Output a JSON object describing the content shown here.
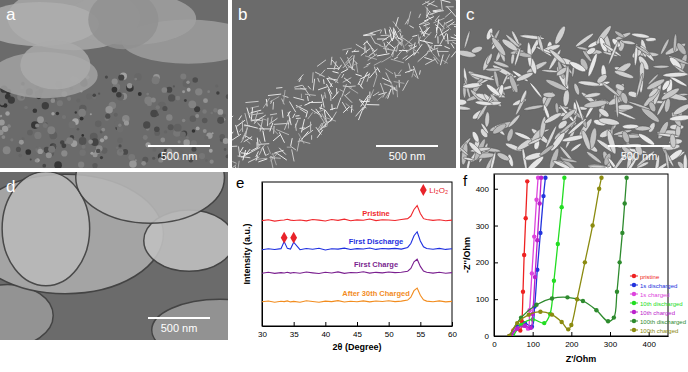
{
  "images": [
    {
      "label": "a",
      "scale_bar": "500 nm"
    },
    {
      "label": "b",
      "scale_bar": "500 nm"
    },
    {
      "label": "c",
      "scale_bar": "500 nm"
    },
    {
      "label": "d",
      "scale_bar": "500 nm"
    }
  ],
  "chart_data": [
    {
      "type": "line",
      "title": "e",
      "x_label": "2θ (Degree)",
      "y_label": "Intensity (a.u.)",
      "x": [
        30,
        31,
        32,
        33,
        33.5,
        34,
        34.5,
        35,
        36,
        37,
        38,
        39,
        40,
        41,
        42,
        43,
        44,
        45,
        46,
        47,
        48,
        49,
        50,
        51,
        52,
        53,
        53.5,
        54,
        54.5,
        55,
        55.5,
        56,
        57,
        58,
        59,
        60
      ],
      "xlim": [
        30,
        60
      ],
      "xticks": [
        30,
        35,
        40,
        45,
        50,
        55,
        60
      ],
      "ylim": [
        0,
        110
      ],
      "tick_labels": "x",
      "legend": "upper right",
      "series": [
        {
          "name": "Pristine",
          "color": "#f0282d",
          "values": [
            80.5,
            81.2,
            80.1,
            80.8,
            81.0,
            81.5,
            80.9,
            80.6,
            81.0,
            80.3,
            81.4,
            80.9,
            80.2,
            81.3,
            80.7,
            81.6,
            80.4,
            81.1,
            80.8,
            81.7,
            80.5,
            81.2,
            81.0,
            80.6,
            81.4,
            82.0,
            84,
            89,
            92,
            86,
            82,
            81.3,
            80.7,
            81.2,
            80.4,
            80.9
          ]
        },
        {
          "name": "First Discharge",
          "color": "#1e2fe0",
          "values": [
            58.2,
            59.0,
            58.4,
            59.1,
            64.5,
            59.3,
            58.8,
            64.0,
            58.3,
            59.2,
            58.6,
            59.4,
            58.1,
            59.0,
            58.7,
            59.5,
            58.4,
            59.1,
            58.8,
            59.6,
            58.5,
            59.2,
            58.9,
            59.3,
            58.7,
            60.0,
            63,
            69,
            72,
            65,
            60.5,
            59.2,
            58.6,
            59.3,
            58.5,
            59.0
          ]
        },
        {
          "name": "First Charge",
          "color": "#7a1f8f",
          "values": [
            40.3,
            41.0,
            40.2,
            40.8,
            40.5,
            41.1,
            40.4,
            40.9,
            40.3,
            41.2,
            40.6,
            40.1,
            41.0,
            40.5,
            41.3,
            40.2,
            40.9,
            40.7,
            41.4,
            40.4,
            41.0,
            40.6,
            41.2,
            40.8,
            41.1,
            41.8,
            44,
            49,
            51,
            45.5,
            42,
            41.0,
            40.4,
            41.1,
            40.3,
            40.8
          ]
        },
        {
          "name": "After 30th Charged",
          "color": "#f28c1e",
          "values": [
            18.5,
            19.1,
            18.2,
            18.9,
            18.6,
            19.2,
            18.4,
            18.8,
            18.1,
            19.3,
            18.7,
            18.2,
            19.0,
            18.6,
            19.4,
            18.3,
            18.9,
            18.5,
            19.2,
            18.4,
            19.1,
            18.7,
            19.3,
            18.6,
            19.0,
            19.8,
            22,
            27,
            29,
            23.5,
            20,
            19.0,
            18.5,
            19.2,
            18.4,
            18.8
          ]
        },
        {
          "name": "Li₂O₂",
          "type": "scatter",
          "marker": "diamond",
          "color": "#e8232a",
          "x": [
            33.5,
            35.0
          ],
          "values": [
            67.5,
            67.5
          ]
        }
      ]
    },
    {
      "type": "scatter",
      "title": "f",
      "x_label": "Z'/Ohm",
      "y_label": "-Z''/Ohm",
      "xlim": [
        0,
        450
      ],
      "xticks": [
        0,
        100,
        200,
        300,
        400
      ],
      "ylim": [
        0,
        440
      ],
      "yticks": [
        0,
        100,
        200,
        300,
        400
      ],
      "legend": "lower right",
      "series": [
        {
          "name": "pristine",
          "color": "#ee2222",
          "marker": "circle",
          "line_style": "solid",
          "x": [
            40,
            50,
            60,
            68,
            72,
            75,
            78,
            82,
            86
          ],
          "values": [
            0,
            15,
            20,
            15,
            40,
            120,
            220,
            320,
            420
          ]
        },
        {
          "name": "1s discharged",
          "color": "#2233dd",
          "marker": "circle",
          "line_style": "solid",
          "x": [
            45,
            60,
            80,
            98,
            105,
            112,
            120,
            128,
            133
          ],
          "values": [
            0,
            25,
            35,
            25,
            80,
            180,
            280,
            380,
            430
          ]
        },
        {
          "name": "1s charged",
          "color": "#dd44dd",
          "marker": "circle",
          "line_style": "solid",
          "x": [
            40,
            55,
            75,
            88,
            92,
            98,
            104,
            110,
            114
          ],
          "values": [
            0,
            20,
            28,
            20,
            70,
            170,
            270,
            370,
            430
          ]
        },
        {
          "name": "10th discharged",
          "color": "#22dd22",
          "marker": "circle",
          "line_style": "solid",
          "x": [
            50,
            70,
            100,
            130,
            145,
            155,
            165,
            175,
            182
          ],
          "values": [
            0,
            30,
            45,
            35,
            60,
            150,
            250,
            350,
            430
          ]
        },
        {
          "name": "10th charged",
          "color": "#bb22cc",
          "marker": "circle",
          "line_style": "solid",
          "x": [
            45,
            60,
            80,
            95,
            100,
            106,
            112,
            118,
            122
          ],
          "values": [
            0,
            20,
            28,
            22,
            60,
            160,
            260,
            360,
            430
          ]
        },
        {
          "name": "100th discharged",
          "color": "#2e8b2e",
          "marker": "circle",
          "line_style": "solid",
          "x": [
            40,
            70,
            110,
            150,
            190,
            230,
            265,
            295,
            310,
            318,
            325,
            332,
            338,
            343
          ],
          "values": [
            0,
            50,
            85,
            102,
            105,
            95,
            70,
            40,
            50,
            120,
            200,
            280,
            360,
            430
          ]
        },
        {
          "name": "100th charged",
          "color": "#8b8b10",
          "marker": "circle",
          "line_style": "solid",
          "x": [
            40,
            60,
            90,
            120,
            150,
            175,
            192,
            200,
            215,
            235,
            255,
            272,
            278
          ],
          "values": [
            0,
            35,
            58,
            66,
            58,
            38,
            18,
            30,
            100,
            200,
            300,
            400,
            430
          ]
        }
      ]
    }
  ]
}
